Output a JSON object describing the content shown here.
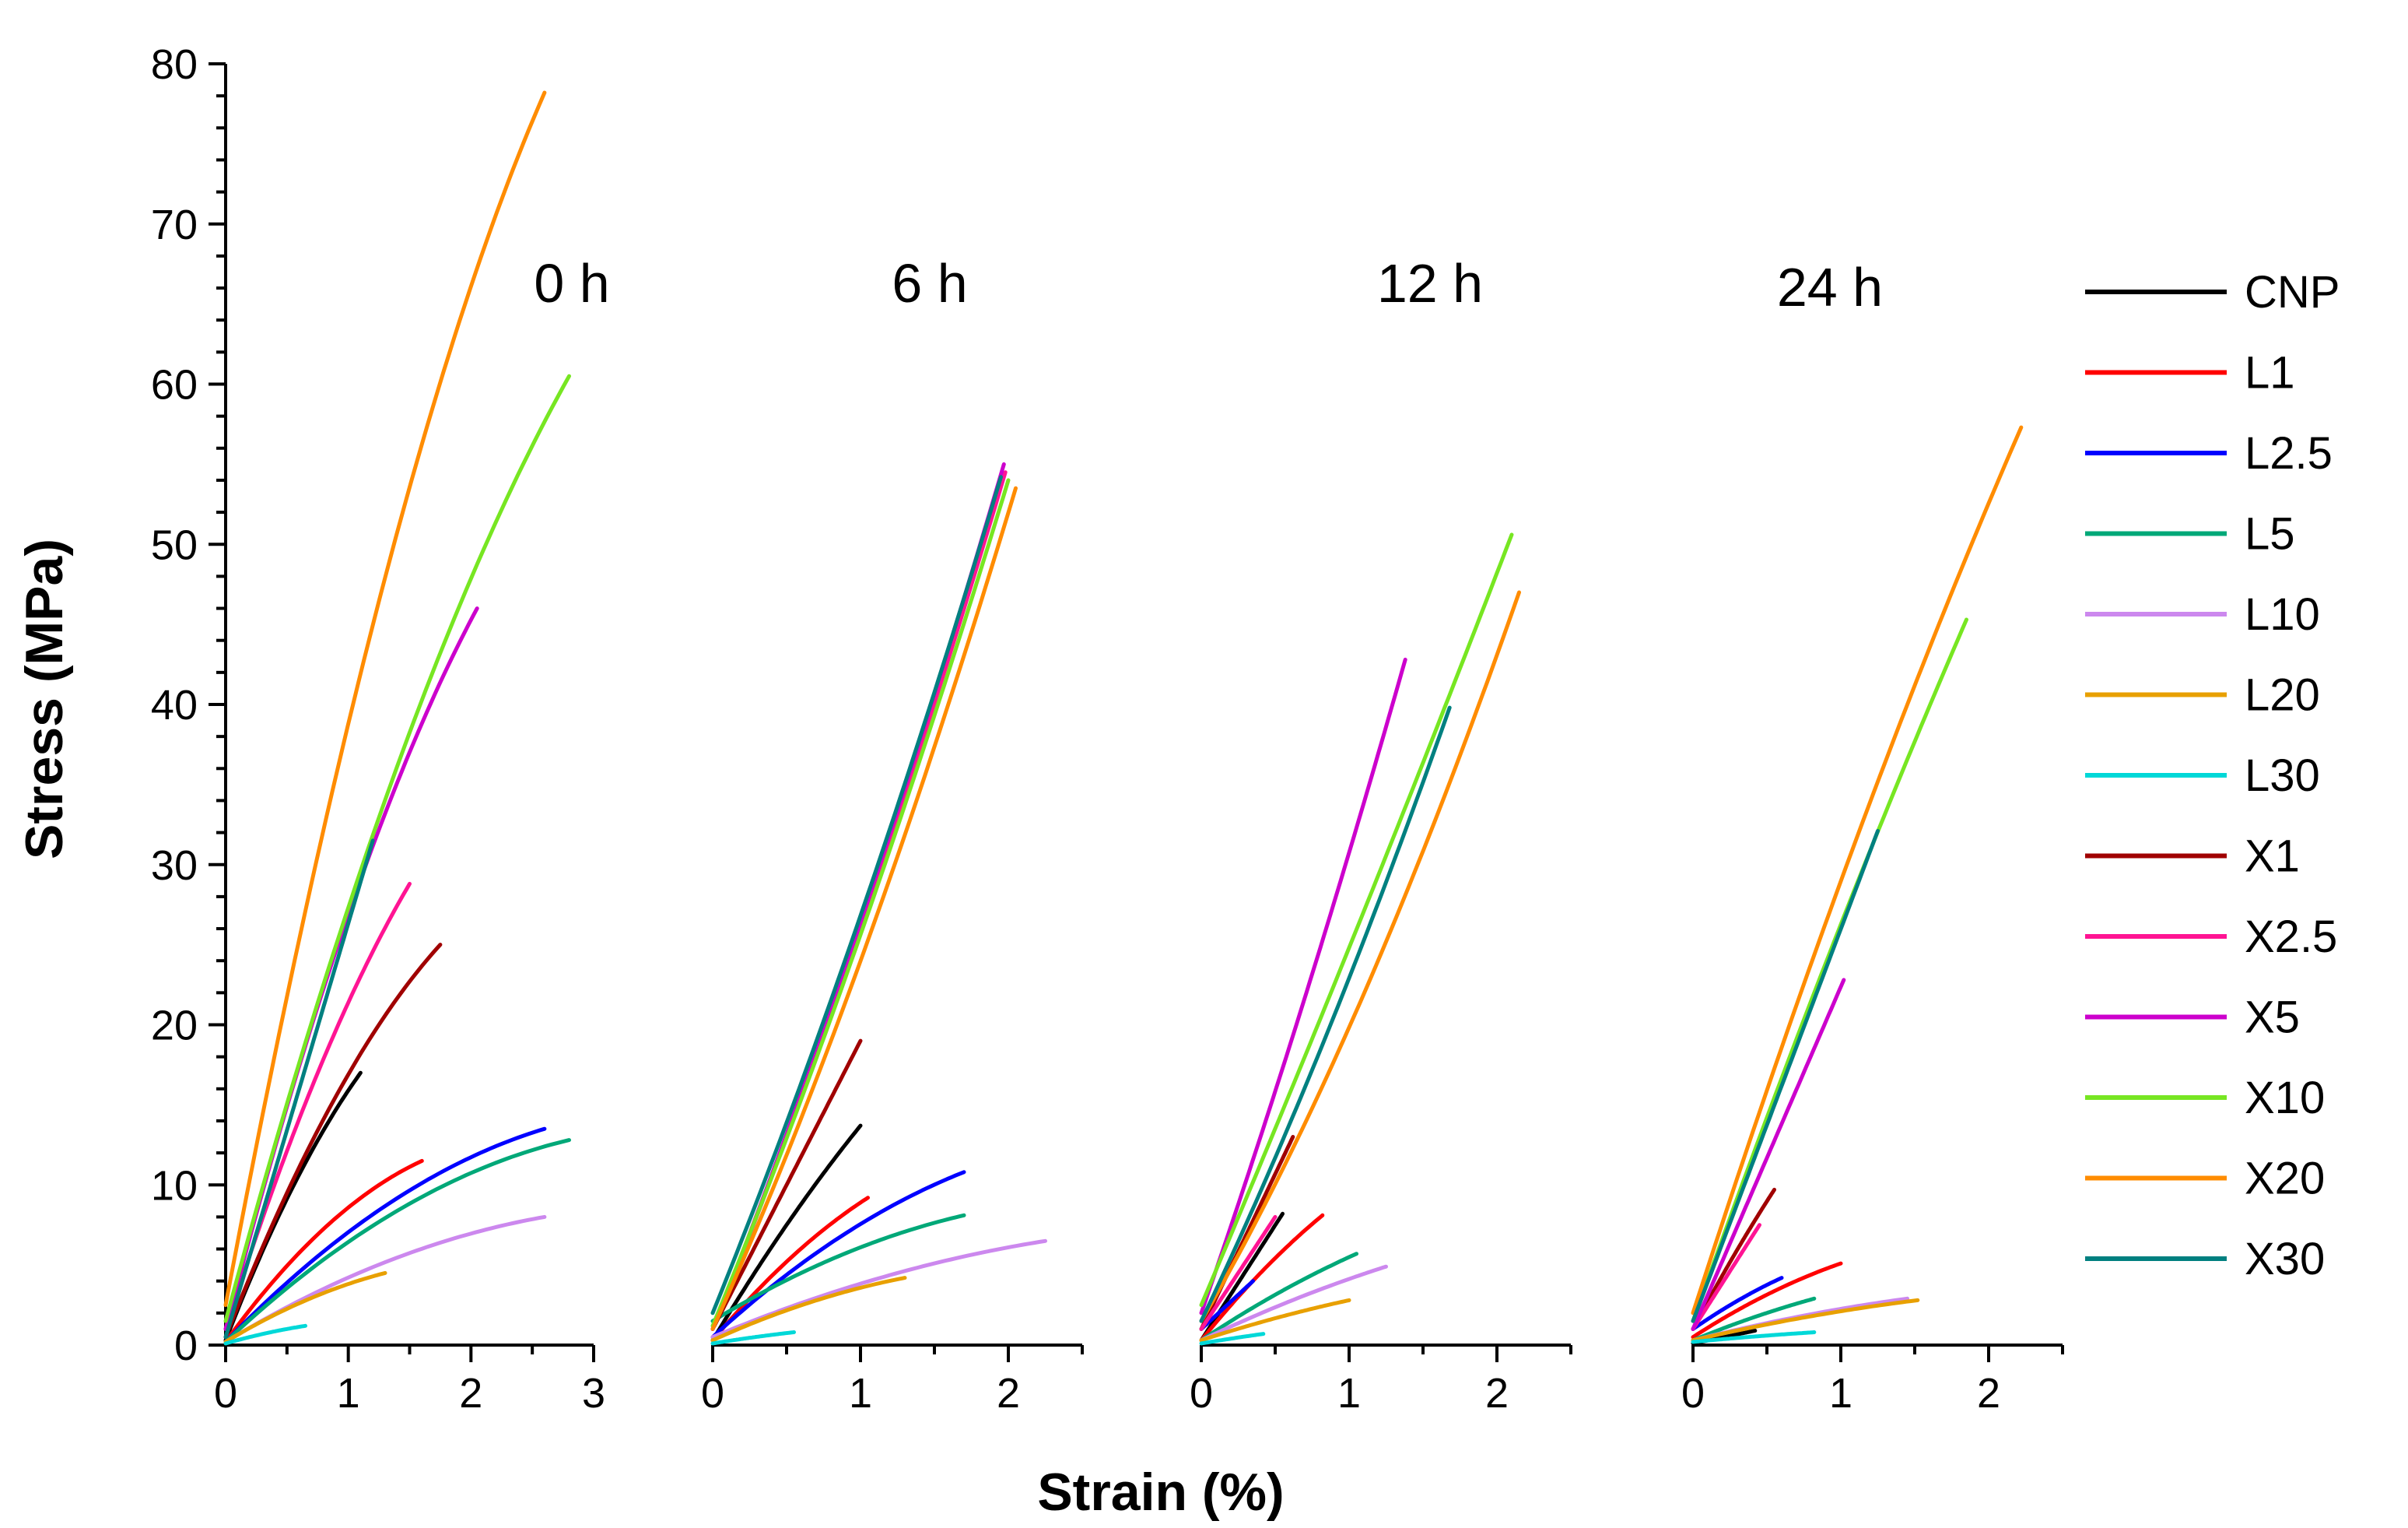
{
  "chart_data": {
    "type": "line",
    "ylabel": "Stress (MPa)",
    "xlabel": "Strain (%)",
    "ylim": [
      0,
      80
    ],
    "yticks": [
      0,
      10,
      20,
      30,
      40,
      50,
      60,
      70,
      80
    ],
    "legend": [
      {
        "name": "CNP",
        "color": "#000000"
      },
      {
        "name": "L1",
        "color": "#ff0000"
      },
      {
        "name": "L2.5",
        "color": "#0000ff"
      },
      {
        "name": "L5",
        "color": "#00a878"
      },
      {
        "name": "L10",
        "color": "#cc88ee"
      },
      {
        "name": "L20",
        "color": "#e8a000"
      },
      {
        "name": "L30",
        "color": "#00d8d8"
      },
      {
        "name": "X1",
        "color": "#a00000"
      },
      {
        "name": "X2.5",
        "color": "#ff1493"
      },
      {
        "name": "X5",
        "color": "#cc00cc"
      },
      {
        "name": "X10",
        "color": "#77e622"
      },
      {
        "name": "X20",
        "color": "#ff8c00"
      },
      {
        "name": "X30",
        "color": "#008080"
      }
    ],
    "panels": [
      {
        "title": "0 h",
        "xlim": [
          0,
          3
        ],
        "xticks": [
          0,
          1,
          2,
          3
        ],
        "series": [
          {
            "name": "CNP",
            "start": 0.3,
            "end_x": 1.1,
            "end_y": 17,
            "shape": 0.3
          },
          {
            "name": "L1",
            "start": 0.2,
            "end_x": 1.6,
            "end_y": 11.5,
            "shape": 0.5
          },
          {
            "name": "L2.5",
            "start": 0.2,
            "end_x": 2.6,
            "end_y": 13.5,
            "shape": 0.55
          },
          {
            "name": "L5",
            "start": 0.2,
            "end_x": 2.8,
            "end_y": 12.8,
            "shape": 0.6
          },
          {
            "name": "L10",
            "start": 0.2,
            "end_x": 2.6,
            "end_y": 8,
            "shape": 0.55
          },
          {
            "name": "L20",
            "start": 0.2,
            "end_x": 1.3,
            "end_y": 4.5,
            "shape": 0.4
          },
          {
            "name": "L30",
            "start": 0.1,
            "end_x": 0.65,
            "end_y": 1.2,
            "shape": 0.3
          },
          {
            "name": "X1",
            "start": 0.5,
            "end_x": 1.75,
            "end_y": 25,
            "shape": 0.4
          },
          {
            "name": "X2.5",
            "start": 1.0,
            "end_x": 1.5,
            "end_y": 28.8,
            "shape": 0.3
          },
          {
            "name": "X5",
            "start": 1.0,
            "end_x": 2.05,
            "end_y": 46,
            "shape": 0.35
          },
          {
            "name": "X10",
            "start": 1.5,
            "end_x": 2.8,
            "end_y": 60.5,
            "shape": 0.35
          },
          {
            "name": "X20",
            "start": 2.5,
            "end_x": 2.6,
            "end_y": 78.2,
            "shape": 0.4
          },
          {
            "name": "X30",
            "start": 0.5,
            "end_x": 1.2,
            "end_y": 31.5,
            "shape": 0.0
          }
        ]
      },
      {
        "title": "6 h",
        "xlim": [
          0,
          2.5
        ],
        "xticks": [
          0,
          1,
          2
        ],
        "series": [
          {
            "name": "CNP",
            "start": 0.3,
            "end_x": 1.0,
            "end_y": 13.7,
            "shape": 0.15
          },
          {
            "name": "L1",
            "start": 0.3,
            "end_x": 1.05,
            "end_y": 9.2,
            "shape": 0.3
          },
          {
            "name": "L2.5",
            "start": 0.5,
            "end_x": 1.7,
            "end_y": 10.8,
            "shape": 0.4
          },
          {
            "name": "L5",
            "start": 1.5,
            "end_x": 1.7,
            "end_y": 8.1,
            "shape": 0.45
          },
          {
            "name": "L10",
            "start": 0.5,
            "end_x": 2.25,
            "end_y": 6.5,
            "shape": 0.45
          },
          {
            "name": "L20",
            "start": 0.3,
            "end_x": 1.3,
            "end_y": 4.2,
            "shape": 0.4
          },
          {
            "name": "L30",
            "start": 0.1,
            "end_x": 0.55,
            "end_y": 0.8,
            "shape": 0.2
          },
          {
            "name": "X1",
            "start": 1.0,
            "end_x": 1.0,
            "end_y": 19,
            "shape": 0.0
          },
          {
            "name": "X2.5",
            "start": 1.0,
            "end_x": 1.98,
            "end_y": 54.5,
            "shape": -0.15
          },
          {
            "name": "X5",
            "start": 1.0,
            "end_x": 1.97,
            "end_y": 55,
            "shape": -0.15
          },
          {
            "name": "X10",
            "start": 1.2,
            "end_x": 2.0,
            "end_y": 54,
            "shape": -0.15
          },
          {
            "name": "X20",
            "start": 1.0,
            "end_x": 2.05,
            "end_y": 53.5,
            "shape": -0.2
          },
          {
            "name": "X30",
            "start": 2.0,
            "end_x": 1.95,
            "end_y": 54.2,
            "shape": -0.15
          }
        ]
      },
      {
        "title": "12 h",
        "xlim": [
          0,
          2.5
        ],
        "xticks": [
          0,
          1,
          2
        ],
        "series": [
          {
            "name": "CNP",
            "start": 0.3,
            "end_x": 0.55,
            "end_y": 8.2,
            "shape": 0.0
          },
          {
            "name": "L1",
            "start": 0.3,
            "end_x": 0.82,
            "end_y": 8.1,
            "shape": 0.2
          },
          {
            "name": "L2.5",
            "start": 1.0,
            "end_x": 0.35,
            "end_y": 4.0,
            "shape": 0.0
          },
          {
            "name": "L5",
            "start": 0.3,
            "end_x": 1.05,
            "end_y": 5.7,
            "shape": 0.2
          },
          {
            "name": "L10",
            "start": 0.3,
            "end_x": 1.25,
            "end_y": 4.9,
            "shape": 0.2
          },
          {
            "name": "L20",
            "start": 0.3,
            "end_x": 1.0,
            "end_y": 2.8,
            "shape": 0.2
          },
          {
            "name": "L30",
            "start": 0.1,
            "end_x": 0.42,
            "end_y": 0.7,
            "shape": 0.1
          },
          {
            "name": "X1",
            "start": 1.0,
            "end_x": 0.62,
            "end_y": 13.0,
            "shape": 0.0
          },
          {
            "name": "X2.5",
            "start": 1.0,
            "end_x": 0.5,
            "end_y": 8.0,
            "shape": 0.0
          },
          {
            "name": "X5",
            "start": 2.0,
            "end_x": 1.38,
            "end_y": 42.8,
            "shape": -0.1
          },
          {
            "name": "X10",
            "start": 2.5,
            "end_x": 2.1,
            "end_y": 50.6,
            "shape": -0.05
          },
          {
            "name": "X20",
            "start": 1.5,
            "end_x": 2.15,
            "end_y": 47,
            "shape": -0.25
          },
          {
            "name": "X30",
            "start": 1.5,
            "end_x": 1.68,
            "end_y": 39.8,
            "shape": -0.15
          }
        ]
      },
      {
        "title": "24 h",
        "xlim": [
          0,
          2.5
        ],
        "xticks": [
          0,
          1,
          2
        ],
        "series": [
          {
            "name": "CNP",
            "start": 0.1,
            "end_x": 0.42,
            "end_y": 0.9,
            "shape": 0.0
          },
          {
            "name": "L1",
            "start": 0.5,
            "end_x": 1.0,
            "end_y": 5.1,
            "shape": 0.3
          },
          {
            "name": "L2.5",
            "start": 1.0,
            "end_x": 0.6,
            "end_y": 4.2,
            "shape": 0.2
          },
          {
            "name": "L5",
            "start": 0.3,
            "end_x": 0.82,
            "end_y": 2.9,
            "shape": 0.2
          },
          {
            "name": "L10",
            "start": 0.3,
            "end_x": 1.45,
            "end_y": 2.9,
            "shape": 0.3
          },
          {
            "name": "L20",
            "start": 0.3,
            "end_x": 1.52,
            "end_y": 2.8,
            "shape": 0.3
          },
          {
            "name": "L30",
            "start": 0.2,
            "end_x": 0.82,
            "end_y": 0.8,
            "shape": 0.2
          },
          {
            "name": "X1",
            "start": 1.0,
            "end_x": 0.55,
            "end_y": 9.7,
            "shape": 0.1
          },
          {
            "name": "X2.5",
            "start": 1.0,
            "end_x": 0.45,
            "end_y": 7.5,
            "shape": 0.0
          },
          {
            "name": "X5",
            "start": 1.0,
            "end_x": 1.02,
            "end_y": 22.8,
            "shape": 0.0
          },
          {
            "name": "X10",
            "start": 1.5,
            "end_x": 1.85,
            "end_y": 45.3,
            "shape": 0.1
          },
          {
            "name": "X20",
            "start": 2.0,
            "end_x": 2.22,
            "end_y": 57.3,
            "shape": 0.15
          },
          {
            "name": "X30",
            "start": 1.5,
            "end_x": 1.25,
            "end_y": 32.1,
            "shape": 0.0
          }
        ]
      }
    ]
  }
}
